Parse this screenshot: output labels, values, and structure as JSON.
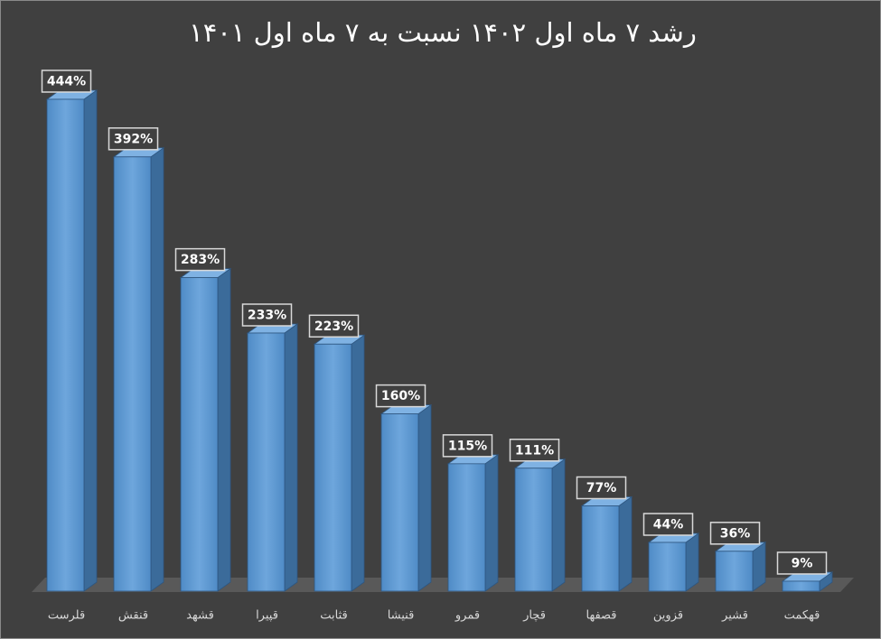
{
  "chart_data": {
    "type": "bar3d",
    "title": "رشد ۷ ماه اول ۱۴۰۲ نسبت به ۷ ماه اول ۱۴۰۱",
    "categories": [
      "قلرست",
      "قنقش",
      "قشهد",
      "قپیرا",
      "قثابت",
      "قنیشا",
      "قمرو",
      "قچار",
      "قصفها",
      "قزوین",
      "قشیر",
      "قهکمت"
    ],
    "values": [
      444,
      392,
      283,
      233,
      223,
      160,
      115,
      111,
      77,
      44,
      36,
      9
    ],
    "value_labels": [
      "444%",
      "392%",
      "283%",
      "233%",
      "223%",
      "160%",
      "115%",
      "111%",
      "77%",
      "44%",
      "36%",
      "9%"
    ],
    "color": "#5b9bd5"
  }
}
